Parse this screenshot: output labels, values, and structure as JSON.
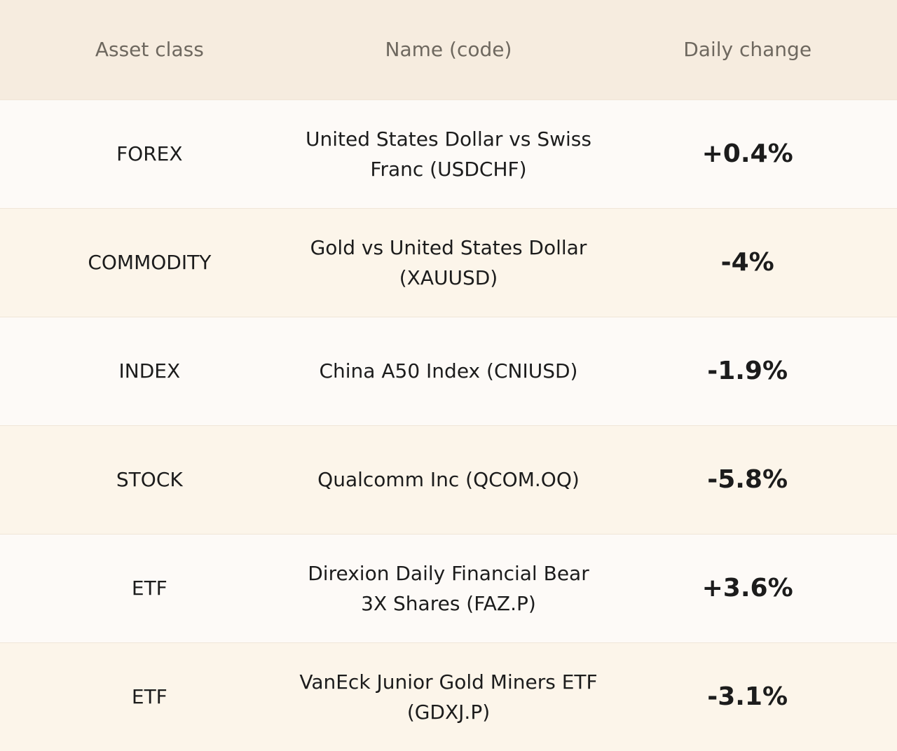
{
  "table": {
    "header": [
      "Asset class",
      "Name (code)",
      "Daily change"
    ],
    "rows": [
      [
        "FOREX",
        "United States Dollar vs Swiss Franc (USDCHF)",
        "+0.4%"
      ],
      [
        "COMMODITY",
        "Gold vs United States Dollar (XAUUSD)",
        "-4%"
      ],
      [
        "INDEX",
        "China A50 Index (CNIUSD)",
        "-1.9%"
      ],
      [
        "STOCK",
        "Qualcomm Inc (QCOM.OQ)",
        "-5.8%"
      ],
      [
        "ETF",
        "Direxion Daily Financial Bear 3X Shares (FAZ.P)",
        "+3.6%"
      ],
      [
        "ETF",
        "VanEck Junior Gold Miners ETF (GDXJ.P)",
        "-3.1%"
      ]
    ]
  }
}
